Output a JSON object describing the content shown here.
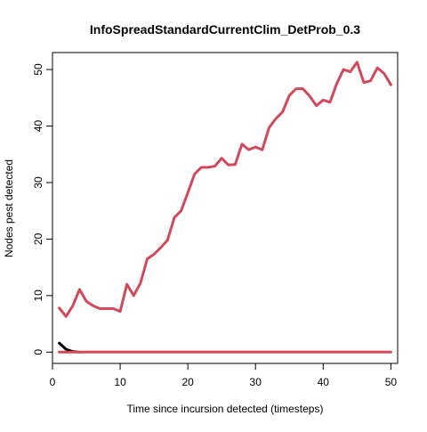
{
  "chart_data": {
    "type": "line",
    "title": "InfoSpreadStandardCurrentClim_DetProb_0.3",
    "xlabel": "Time since incursion detected (timesteps)",
    "ylabel": "Nodes pest detected",
    "xlim": [
      0,
      51
    ],
    "ylim": [
      -2,
      53
    ],
    "xticks": [
      0,
      10,
      20,
      30,
      40,
      50
    ],
    "yticks": [
      0,
      10,
      20,
      30,
      40,
      50
    ],
    "grid": false,
    "legend": "none",
    "series": [
      {
        "color": "#D1495B",
        "x": [
          1,
          2,
          3,
          4,
          5,
          6,
          7,
          8,
          9,
          10,
          11,
          12,
          13,
          14,
          15,
          16,
          17,
          18,
          19,
          20,
          21,
          22,
          23,
          24,
          25,
          26,
          27,
          28,
          29,
          30,
          31,
          32,
          33,
          34,
          35,
          36,
          37,
          38,
          39,
          40,
          41,
          42,
          43,
          44,
          45,
          46,
          47,
          48,
          49,
          50
        ],
        "y": [
          7.8,
          6.3,
          8.2,
          11.1,
          9.0,
          8.2,
          7.7,
          7.7,
          7.7,
          7.2,
          12.0,
          10.0,
          12.2,
          16.5,
          17.3,
          18.5,
          19.8,
          23.8,
          25.0,
          28.2,
          31.5,
          32.7,
          32.7,
          32.9,
          34.3,
          33.1,
          33.2,
          36.8,
          35.8,
          36.3,
          35.8,
          39.7,
          41.3,
          42.5,
          45.4,
          46.6,
          46.6,
          45.3,
          43.6,
          44.6,
          44.2,
          47.5,
          50.0,
          49.6,
          51.3,
          47.7,
          48.0,
          50.3,
          49.3,
          47.3
        ]
      },
      {
        "color": "#000000",
        "x": [
          1,
          2,
          3,
          4
        ],
        "y": [
          1.6,
          0.5,
          0.1,
          0
        ]
      },
      {
        "color": "#D1495B",
        "x": [
          1,
          50
        ],
        "y": [
          0,
          0
        ]
      }
    ]
  }
}
